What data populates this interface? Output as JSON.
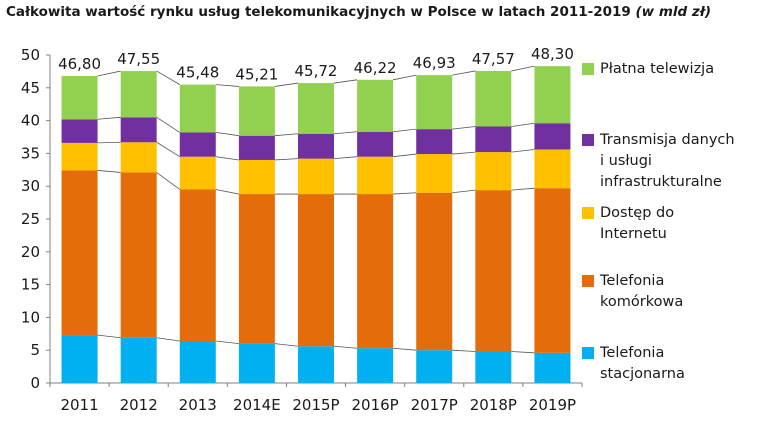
{
  "chart_data": {
    "type": "bar",
    "stacked": true,
    "title": "Całkowita wartość rynku usług telekomunikacyjnych w Polsce w latach 2011-2019",
    "title_unit": "(w mld zł)",
    "categories": [
      "2011",
      "2012",
      "2013",
      "2014E",
      "2015P",
      "2016P",
      "2017P",
      "2018P",
      "2019P"
    ],
    "totals": [
      "46,80",
      "47,55",
      "45,48",
      "45,21",
      "45,72",
      "46,22",
      "46,93",
      "47,57",
      "48,30"
    ],
    "y_ticks": [
      "0",
      "5",
      "10",
      "15",
      "20",
      "25",
      "30",
      "35",
      "40",
      "45",
      "50"
    ],
    "ylim": [
      0,
      50
    ],
    "grid": false,
    "legend_position": "right",
    "series": [
      {
        "name": "Telefonia\nstacjonarna",
        "color": "#00b0f0",
        "values": [
          7.3,
          6.9,
          6.4,
          6.0,
          5.6,
          5.3,
          5.0,
          4.8,
          4.6
        ]
      },
      {
        "name": "Telefonia\nkomórkowa",
        "color": "#e46c0a",
        "values": [
          25.1,
          25.2,
          23.1,
          22.8,
          23.2,
          23.5,
          24.0,
          24.6,
          25.1
        ]
      },
      {
        "name": "Dostęp do\nInternetu",
        "color": "#ffc000",
        "values": [
          4.2,
          4.6,
          5.0,
          5.2,
          5.4,
          5.7,
          5.9,
          5.8,
          5.9
        ]
      },
      {
        "name": "Transmisja danych\ni usługi\ninfrastrukturalne",
        "color": "#7030a0",
        "values": [
          3.6,
          3.8,
          3.7,
          3.7,
          3.8,
          3.8,
          3.8,
          3.9,
          4.0
        ]
      },
      {
        "name": "Płatna telewizja",
        "color": "#92d050",
        "values": [
          6.6,
          7.05,
          7.28,
          7.51,
          7.72,
          7.92,
          8.23,
          8.47,
          8.7
        ]
      }
    ]
  }
}
